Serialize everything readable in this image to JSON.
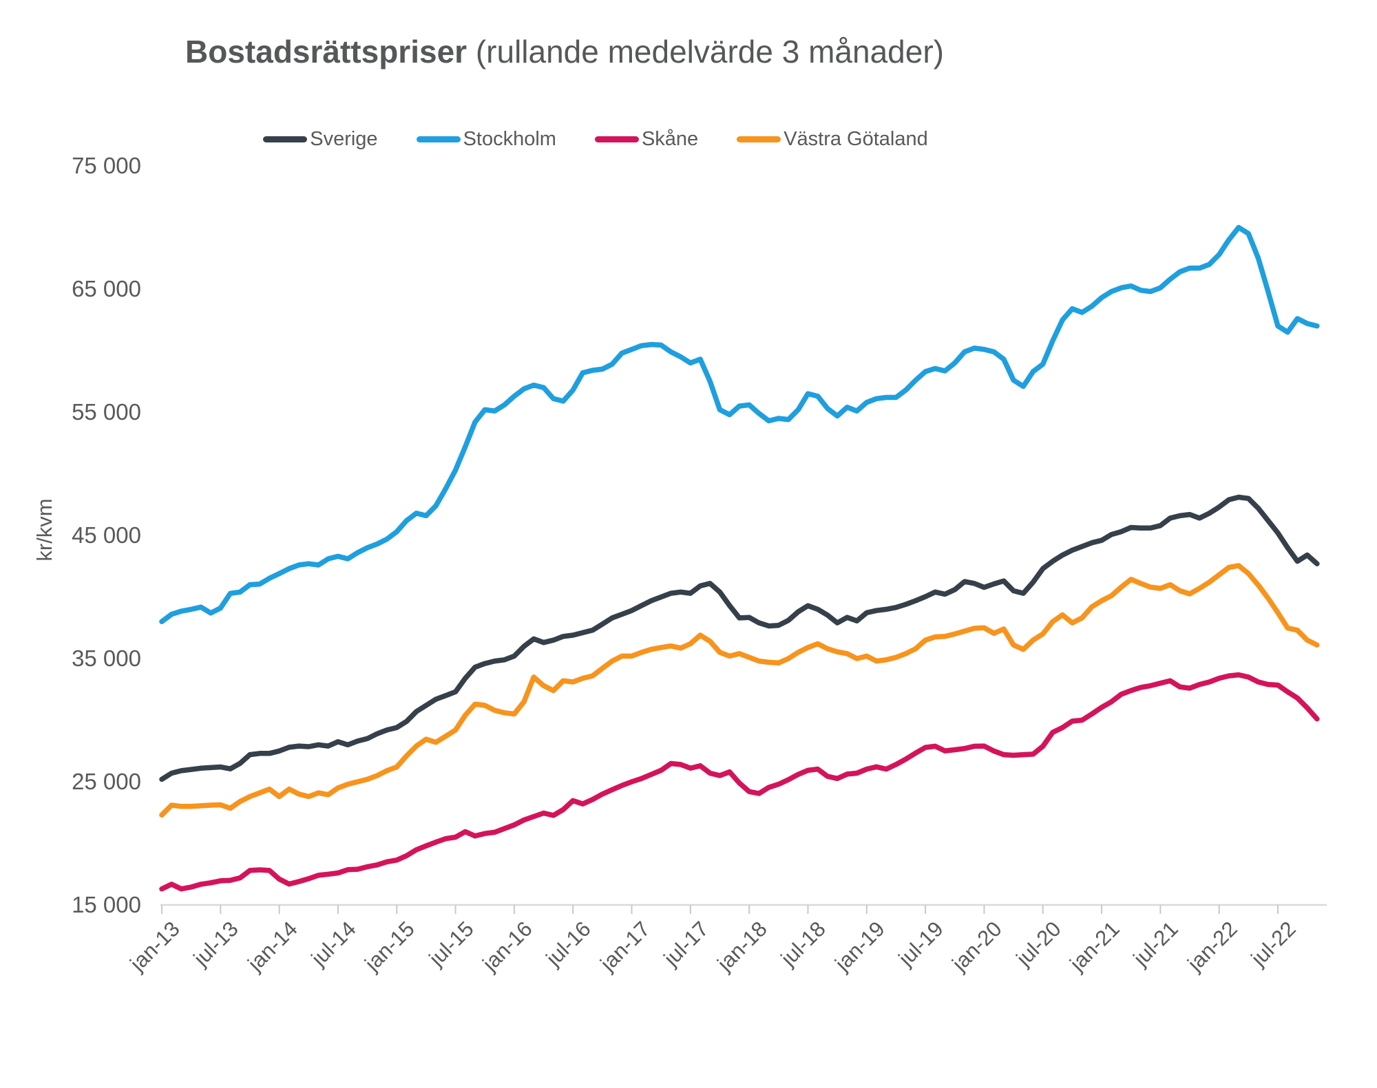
{
  "title": {
    "bold": "Bostadsrättspriser",
    "regular": " (rullande medelvärde 3 månader)"
  },
  "y_axis_title": "kr/kvm",
  "colors": {
    "axis_line": "#D9D9D9",
    "tick_mark": "#C9C9C9",
    "text": "#595959"
  },
  "chart_data": {
    "type": "line",
    "title": "Bostadsrättspriser (rullande medelvärde 3 månader)",
    "ylabel": "kr/kvm",
    "ylim": [
      15000,
      75000
    ],
    "grid": false,
    "legend_position": "top",
    "x_start": "jan-13",
    "x_end": "nov-22",
    "points_per_series": 119,
    "months_per_tick": 6,
    "x_tick_labels": [
      "jan-13",
      "jul-13",
      "jan-14",
      "jul-14",
      "jan-15",
      "jul-15",
      "jan-16",
      "jul-16",
      "jan-17",
      "jul-17",
      "jan-18",
      "jul-18",
      "jan-19",
      "jul-19",
      "jan-20",
      "jul-20",
      "jan-21",
      "jul-21",
      "jan-22",
      "jul-22"
    ],
    "y_ticks": [
      {
        "value": 75000,
        "label": "75 000"
      },
      {
        "value": 65000,
        "label": "65 000"
      },
      {
        "value": 55000,
        "label": "55 000"
      },
      {
        "value": 45000,
        "label": "45 000"
      },
      {
        "value": 35000,
        "label": "35 000"
      },
      {
        "value": 25000,
        "label": "25 000"
      },
      {
        "value": 15000,
        "label": "15 000"
      }
    ],
    "series": [
      {
        "name": "Sverige",
        "color": "#36404A",
        "values": [
          25200,
          25700,
          25900,
          26000,
          26100,
          26150,
          26200,
          26050,
          26500,
          27200,
          27300,
          27300,
          27500,
          27800,
          27900,
          27850,
          28000,
          27900,
          28250,
          28000,
          28300,
          28500,
          28900,
          29200,
          29400,
          29900,
          30700,
          31200,
          31700,
          32000,
          32300,
          33400,
          34300,
          34600,
          34800,
          34900,
          35200,
          36000,
          36600,
          36300,
          36500,
          36800,
          36900,
          37100,
          37300,
          37800,
          38300,
          38600,
          38900,
          39300,
          39700,
          40000,
          40300,
          40400,
          40300,
          40900,
          41100,
          40400,
          39300,
          38300,
          38340,
          37900,
          37650,
          37700,
          38100,
          38800,
          39290,
          39000,
          38530,
          37900,
          38340,
          38060,
          38720,
          38900,
          39000,
          39150,
          39400,
          39700,
          40030,
          40400,
          40230,
          40600,
          41250,
          41100,
          40780,
          41060,
          41300,
          40500,
          40300,
          41200,
          42300,
          42900,
          43400,
          43800,
          44100,
          44400,
          44600,
          45070,
          45300,
          45640,
          45600,
          45600,
          45800,
          46400,
          46600,
          46700,
          46400,
          46800,
          47300,
          47900,
          48100,
          48000,
          47200,
          46200,
          45200,
          44000,
          42900,
          43400,
          42700
        ]
      },
      {
        "name": "Stockholm",
        "color": "#1F9FDE",
        "values": [
          38000,
          38600,
          38850,
          39000,
          39180,
          38700,
          39100,
          40290,
          40400,
          41000,
          41050,
          41520,
          41900,
          42300,
          42600,
          42700,
          42600,
          43100,
          43300,
          43100,
          43600,
          44000,
          44300,
          44700,
          45300,
          46200,
          46800,
          46600,
          47400,
          48800,
          50300,
          52200,
          54200,
          55200,
          55100,
          55600,
          56300,
          56900,
          57200,
          57000,
          56100,
          55900,
          56800,
          58200,
          58400,
          58500,
          58900,
          59800,
          60100,
          60400,
          60500,
          60450,
          59900,
          59500,
          59000,
          59300,
          57500,
          55200,
          54800,
          55500,
          55600,
          54900,
          54300,
          54500,
          54400,
          55200,
          56500,
          56300,
          55300,
          54700,
          55400,
          55100,
          55800,
          56100,
          56200,
          56200,
          56800,
          57600,
          58300,
          58550,
          58350,
          59000,
          59900,
          60200,
          60100,
          59900,
          59300,
          57600,
          57100,
          58300,
          58900,
          60800,
          62500,
          63400,
          63100,
          63600,
          64300,
          64800,
          65100,
          65250,
          64900,
          64800,
          65100,
          65800,
          66400,
          66700,
          66700,
          67000,
          67800,
          69000,
          70000,
          69500,
          67500,
          64800,
          62000,
          61500,
          62600,
          62200,
          62000
        ]
      },
      {
        "name": "Skåne",
        "color": "#D4145A",
        "values": [
          16300,
          16680,
          16300,
          16450,
          16680,
          16800,
          16960,
          17000,
          17200,
          17800,
          17850,
          17800,
          17100,
          16700,
          16900,
          17130,
          17410,
          17500,
          17600,
          17860,
          17900,
          18100,
          18250,
          18500,
          18640,
          19000,
          19480,
          19800,
          20100,
          20380,
          20500,
          20950,
          20600,
          20800,
          20900,
          21200,
          21500,
          21900,
          22180,
          22460,
          22270,
          22740,
          23470,
          23200,
          23560,
          24000,
          24350,
          24700,
          25000,
          25260,
          25600,
          25930,
          26480,
          26400,
          26100,
          26300,
          25700,
          25500,
          25800,
          24900,
          24200,
          24050,
          24540,
          24800,
          25170,
          25600,
          25930,
          26030,
          25440,
          25260,
          25620,
          25700,
          26030,
          26210,
          26030,
          26400,
          26840,
          27330,
          27790,
          27880,
          27510,
          27600,
          27700,
          27880,
          27900,
          27500,
          27200,
          27150,
          27200,
          27240,
          27880,
          29010,
          29400,
          29920,
          30000,
          30500,
          31040,
          31500,
          32100,
          32400,
          32660,
          32800,
          33000,
          33200,
          32700,
          32600,
          32900,
          33100,
          33400,
          33600,
          33680,
          33500,
          33100,
          32900,
          32850,
          32300,
          31800,
          31000,
          30100
        ]
      },
      {
        "name": "Västra Götaland",
        "color": "#F7941D",
        "values": [
          22300,
          23100,
          23000,
          23000,
          23050,
          23100,
          23130,
          22850,
          23400,
          23800,
          24100,
          24400,
          23800,
          24400,
          24000,
          23800,
          24100,
          23950,
          24500,
          24800,
          25000,
          25200,
          25500,
          25900,
          26200,
          27100,
          27900,
          28450,
          28200,
          28700,
          29200,
          30400,
          31300,
          31200,
          30800,
          30600,
          30500,
          31500,
          33500,
          32800,
          32400,
          33200,
          33100,
          33400,
          33600,
          34200,
          34800,
          35200,
          35200,
          35500,
          35750,
          35900,
          36030,
          35850,
          36200,
          36900,
          36400,
          35500,
          35200,
          35400,
          35100,
          34800,
          34700,
          34650,
          35000,
          35500,
          35900,
          36200,
          35800,
          35550,
          35400,
          35000,
          35200,
          34800,
          34900,
          35100,
          35400,
          35800,
          36500,
          36760,
          36800,
          37000,
          37230,
          37460,
          37500,
          37050,
          37400,
          36100,
          35750,
          36500,
          37000,
          38000,
          38550,
          37900,
          38300,
          39200,
          39700,
          40100,
          40800,
          41430,
          41100,
          40800,
          40700,
          41000,
          40500,
          40250,
          40700,
          41200,
          41800,
          42400,
          42550,
          41900,
          40960,
          39900,
          38730,
          37480,
          37300,
          36500,
          36100
        ]
      }
    ]
  }
}
